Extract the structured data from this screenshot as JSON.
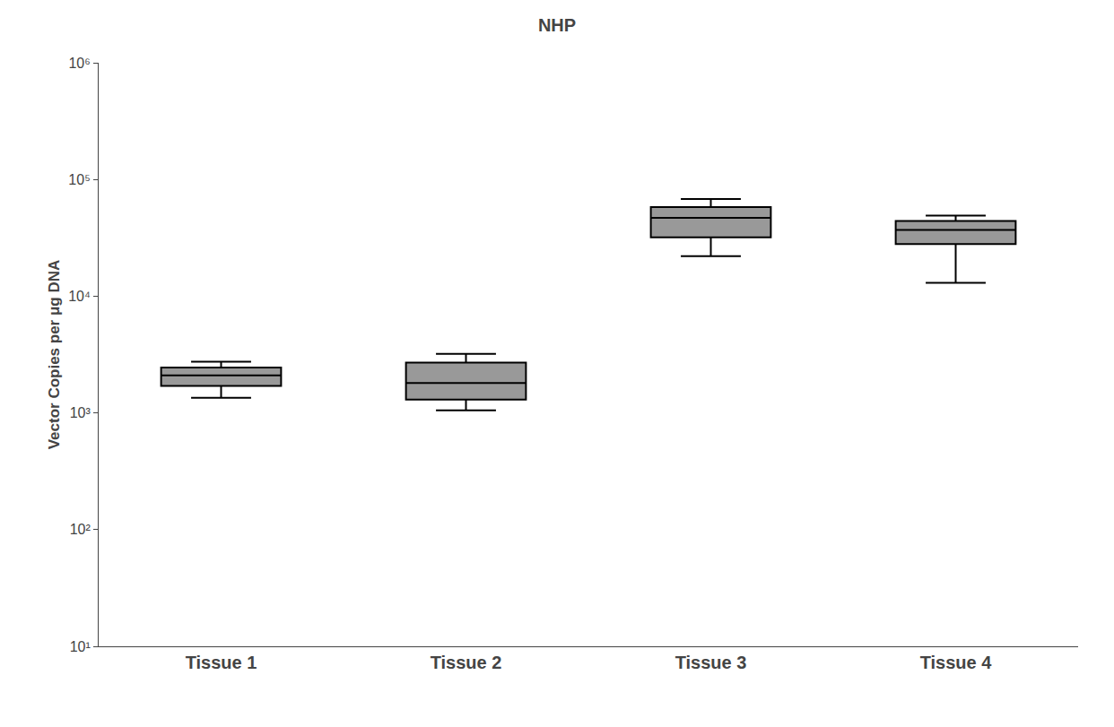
{
  "chart_data": {
    "type": "box",
    "title": "NHP",
    "ylabel": "Vector Copies per μg DNA",
    "categories": [
      "Tissue 1",
      "Tissue 2",
      "Tissue 3",
      "Tissue 4"
    ],
    "whislo": [
      1350,
      1050,
      22000,
      13000
    ],
    "q1": [
      1700,
      1300,
      32000,
      28000
    ],
    "med": [
      2100,
      1800,
      47000,
      37000
    ],
    "q3": [
      2450,
      2700,
      58000,
      44000
    ],
    "whishi": [
      2750,
      3200,
      68000,
      49000
    ],
    "color": "#999999",
    "log": "y",
    "ylim": [
      10,
      1000000
    ],
    "yticks": [
      {
        "value": 10,
        "label": "10¹"
      },
      {
        "value": 100,
        "label": "10²"
      },
      {
        "value": 1000,
        "label": "10³"
      },
      {
        "value": 10000,
        "label": "10⁴"
      },
      {
        "value": 100000,
        "label": "10⁵"
      },
      {
        "value": 1000000,
        "label": "10⁶"
      }
    ],
    "grid": false
  }
}
